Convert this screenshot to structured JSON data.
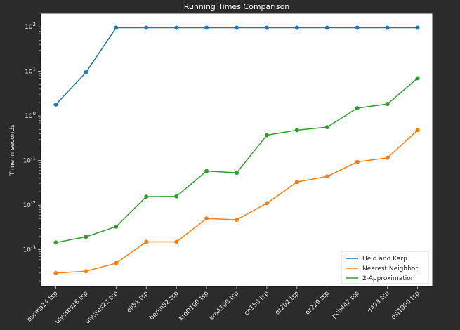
{
  "chart_data": {
    "type": "line",
    "title": "Running Times Comparison",
    "xlabel": "",
    "ylabel": "Time in seconds",
    "yscale": "log",
    "ylim": [
      0.00015,
      200
    ],
    "yticks": [
      {
        "value": 0.001,
        "base": "10",
        "exp": "-3"
      },
      {
        "value": 0.01,
        "base": "10",
        "exp": "-2"
      },
      {
        "value": 0.1,
        "base": "10",
        "exp": "-1"
      },
      {
        "value": 1,
        "base": "10",
        "exp": "0"
      },
      {
        "value": 10,
        "base": "10",
        "exp": "1"
      },
      {
        "value": 100,
        "base": "10",
        "exp": "2"
      }
    ],
    "categories": [
      "burma14.tsp",
      "ulysses16.tsp",
      "ulysses22.tsp",
      "eil51.tsp",
      "berlin52.tsp",
      "kroD100.tsp",
      "kroA100.tsp",
      "ch150.tsp",
      "gr202.tsp",
      "gr229.tsp",
      "pcb442.tsp",
      "d493.tsp",
      "dsj1000.tsp"
    ],
    "grid": false,
    "legend_position": "lower-right",
    "series": [
      {
        "name": "Held and Karp",
        "color": "#1f77b4",
        "values": [
          1.8,
          9.5,
          95,
          95,
          95,
          95,
          95,
          95,
          95,
          95,
          95,
          95,
          95
        ]
      },
      {
        "name": "Nearest Neighbor",
        "color": "#ff7f0e",
        "values": [
          0.0003,
          0.00033,
          0.0005,
          0.0015,
          0.0015,
          0.005,
          0.0047,
          0.011,
          0.033,
          0.044,
          0.093,
          0.115,
          0.48
        ]
      },
      {
        "name": "2-Approximation",
        "color": "#2ca02c",
        "values": [
          0.00145,
          0.00195,
          0.0033,
          0.0155,
          0.0157,
          0.058,
          0.053,
          0.37,
          0.48,
          0.56,
          1.5,
          1.85,
          7.0
        ]
      }
    ]
  },
  "colors": {
    "background": "#2b2b2b",
    "plot_background": "#ffffff",
    "text": "#e6e6e6"
  }
}
